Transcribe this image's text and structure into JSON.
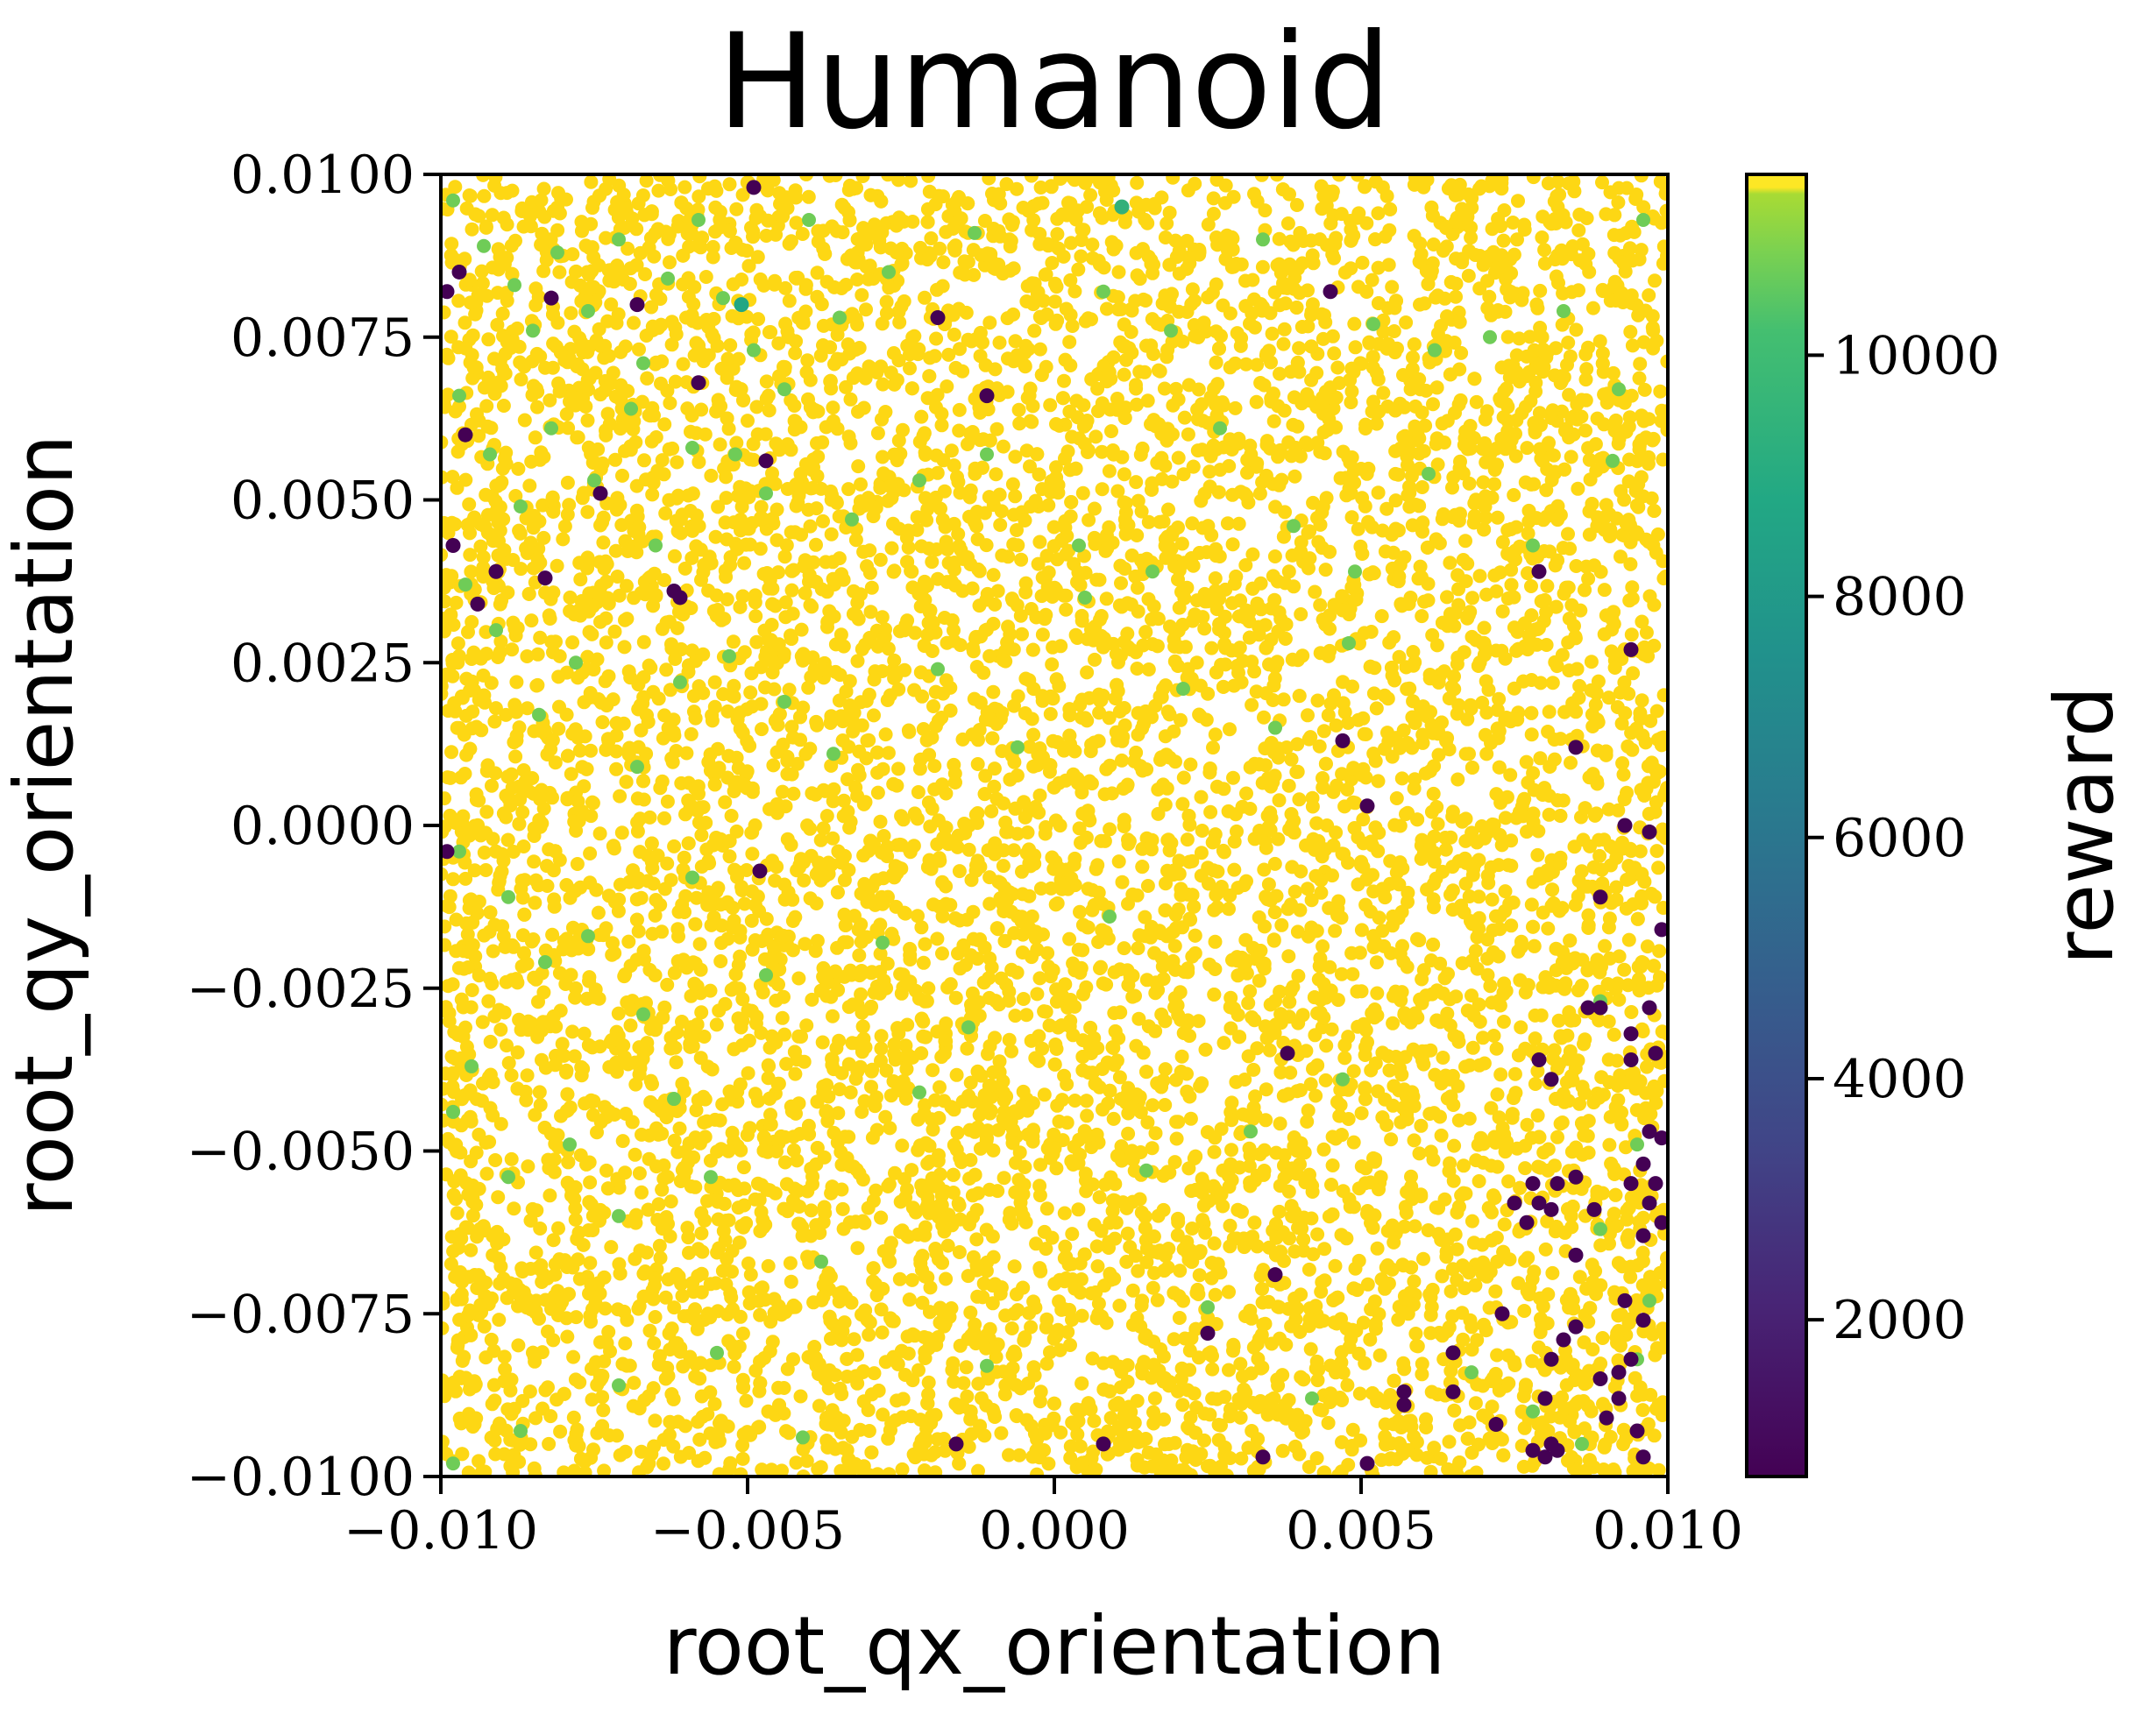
{
  "chart_data": {
    "type": "scatter",
    "title": "Humanoid",
    "xlabel": "root_qx_orientation",
    "ylabel": "root_qy_orientation",
    "xlim": [
      -0.01,
      0.01
    ],
    "ylim": [
      -0.01,
      0.01
    ],
    "xticks": [
      -0.01,
      -0.005,
      0.0,
      0.005,
      0.01
    ],
    "xtick_labels": [
      "−0.010",
      "−0.005",
      "0.000",
      "0.005",
      "0.010"
    ],
    "yticks": [
      0.01,
      0.0075,
      0.005,
      0.0025,
      0.0,
      -0.0025,
      -0.005,
      -0.0075,
      -0.01
    ],
    "ytick_labels": [
      "0.0100",
      "0.0075",
      "0.0050",
      "0.0025",
      "0.0000",
      "−0.0025",
      "−0.0050",
      "−0.0075",
      "−0.0100"
    ],
    "grid": false,
    "colorbar": {
      "label": "reward",
      "colormap": "viridis",
      "range": [
        700,
        11500
      ],
      "ticks": [
        2000,
        4000,
        6000,
        8000,
        10000
      ],
      "tick_labels": [
        "2000",
        "4000",
        "6000",
        "8000",
        "10000"
      ]
    },
    "background_cloud": {
      "description_of_data": "dense uniform cloud of points covering the full square, nearly all at maximum reward",
      "reward": 11500,
      "approx_count": 9000
    },
    "green_points": [
      [
        -0.0098,
        0.0096,
        10600
      ],
      [
        -0.0093,
        0.0089,
        10600
      ],
      [
        -0.0088,
        0.0083,
        10600
      ],
      [
        -0.0085,
        0.0076,
        10600
      ],
      [
        -0.0081,
        0.0088,
        10600
      ],
      [
        -0.0076,
        0.0079,
        10600
      ],
      [
        -0.0071,
        0.009,
        10600
      ],
      [
        -0.0067,
        0.0071,
        10600
      ],
      [
        -0.0063,
        0.0084,
        10600
      ],
      [
        -0.0058,
        0.0093,
        10600
      ],
      [
        -0.0054,
        0.0081,
        10600
      ],
      [
        -0.0049,
        0.0073,
        10600
      ],
      [
        -0.0044,
        0.0067,
        10600
      ],
      [
        -0.004,
        0.0093,
        10600
      ],
      [
        -0.0035,
        0.0078,
        10600
      ],
      [
        -0.0027,
        0.0085,
        10600
      ],
      [
        -0.0013,
        0.0091,
        10600
      ],
      [
        0.0008,
        0.0082,
        10600
      ],
      [
        0.0019,
        0.0076,
        10600
      ],
      [
        0.0034,
        0.009,
        10600
      ],
      [
        0.0052,
        0.0077,
        10600
      ],
      [
        0.0062,
        0.0073,
        10600
      ],
      [
        0.0071,
        0.0075,
        10600
      ],
      [
        0.0083,
        0.0079,
        10600
      ],
      [
        0.0092,
        0.0067,
        10600
      ],
      [
        0.0096,
        0.0093,
        10600
      ],
      [
        -0.0097,
        0.0066,
        10600
      ],
      [
        -0.0092,
        0.0057,
        10600
      ],
      [
        -0.0087,
        0.0049,
        10600
      ],
      [
        -0.0082,
        0.0061,
        10600
      ],
      [
        -0.0075,
        0.0053,
        10600
      ],
      [
        -0.0069,
        0.0064,
        10600
      ],
      [
        -0.0065,
        0.0043,
        10600
      ],
      [
        -0.0059,
        0.0058,
        10600
      ],
      [
        -0.0052,
        0.0057,
        10600
      ],
      [
        -0.0047,
        0.0051,
        10600
      ],
      [
        -0.0033,
        0.0047,
        10600
      ],
      [
        -0.0022,
        0.0053,
        10600
      ],
      [
        -0.0011,
        0.0057,
        10600
      ],
      [
        0.0004,
        0.0043,
        10600
      ],
      [
        0.0016,
        0.0039,
        10600
      ],
      [
        0.0027,
        0.0061,
        10600
      ],
      [
        0.0039,
        0.0046,
        10600
      ],
      [
        0.0049,
        0.0039,
        10600
      ],
      [
        0.0061,
        0.0054,
        10600
      ],
      [
        0.0078,
        0.0043,
        10600
      ],
      [
        0.0091,
        0.0056,
        10600
      ],
      [
        -0.0096,
        0.0037,
        10600
      ],
      [
        -0.0091,
        0.003,
        10600
      ],
      [
        -0.0084,
        0.0017,
        10600
      ],
      [
        -0.0078,
        0.0025,
        10600
      ],
      [
        -0.0068,
        0.0009,
        10600
      ],
      [
        -0.0061,
        0.0022,
        10600
      ],
      [
        -0.0053,
        0.0026,
        10600
      ],
      [
        -0.0044,
        0.0019,
        10600
      ],
      [
        -0.0036,
        0.0011,
        10600
      ],
      [
        -0.0019,
        0.0024,
        10600
      ],
      [
        -0.0006,
        0.0012,
        10600
      ],
      [
        0.0005,
        0.0035,
        10600
      ],
      [
        0.0021,
        0.0021,
        10600
      ],
      [
        0.0036,
        0.0015,
        10600
      ],
      [
        0.0048,
        0.0028,
        10600
      ],
      [
        -0.0097,
        -0.0004,
        10600
      ],
      [
        -0.0089,
        -0.0011,
        10600
      ],
      [
        -0.0083,
        -0.0021,
        10600
      ],
      [
        -0.0076,
        -0.0017,
        10600
      ],
      [
        -0.0067,
        -0.0029,
        10600
      ],
      [
        -0.0059,
        -0.0008,
        10600
      ],
      [
        -0.0047,
        -0.0023,
        10600
      ],
      [
        -0.0028,
        -0.0018,
        10600
      ],
      [
        -0.0014,
        -0.0031,
        10600
      ],
      [
        0.0009,
        -0.0014,
        10600
      ],
      [
        -0.0098,
        -0.0044,
        10600
      ],
      [
        -0.0095,
        -0.0037,
        10600
      ],
      [
        -0.0089,
        -0.0054,
        10600
      ],
      [
        -0.0079,
        -0.0049,
        10600
      ],
      [
        -0.0071,
        -0.006,
        10600
      ],
      [
        -0.0062,
        -0.0042,
        10600
      ],
      [
        -0.0056,
        -0.0054,
        10600
      ],
      [
        -0.0038,
        -0.0067,
        10600
      ],
      [
        -0.0022,
        -0.0041,
        10600
      ],
      [
        0.0015,
        -0.0053,
        10600
      ],
      [
        0.0032,
        -0.0047,
        10600
      ],
      [
        0.0047,
        -0.0039,
        10600
      ],
      [
        0.0089,
        -0.0027,
        10600
      ],
      [
        0.0095,
        -0.0049,
        10600
      ],
      [
        0.0097,
        -0.0073,
        10600
      ],
      [
        0.0089,
        -0.0062,
        10600
      ],
      [
        -0.0098,
        -0.0098,
        10600
      ],
      [
        -0.0087,
        -0.0093,
        10600
      ],
      [
        -0.0071,
        -0.0086,
        10600
      ],
      [
        -0.0055,
        -0.0081,
        10600
      ],
      [
        -0.0011,
        -0.0083,
        10600
      ],
      [
        0.0025,
        -0.0074,
        10600
      ],
      [
        0.0068,
        -0.0084,
        10600
      ],
      [
        0.0078,
        -0.009,
        10600
      ],
      [
        0.0095,
        -0.0082,
        10600
      ],
      [
        0.0086,
        -0.0095,
        10600
      ],
      [
        0.0042,
        -0.0088,
        10600
      ],
      [
        -0.0041,
        -0.0094,
        10600
      ]
    ],
    "low_reward_points": [
      [
        -0.0099,
        0.0082,
        700
      ],
      [
        -0.0097,
        0.0085,
        700
      ],
      [
        -0.0082,
        0.0081,
        700
      ],
      [
        -0.0068,
        0.008,
        700
      ],
      [
        -0.0049,
        0.0098,
        700
      ],
      [
        -0.0051,
        0.008,
        8700
      ],
      [
        0.0011,
        0.0095,
        9200
      ],
      [
        -0.0019,
        0.0078,
        700
      ],
      [
        -0.0058,
        0.0068,
        700
      ],
      [
        -0.0011,
        0.0066,
        700
      ],
      [
        -0.0096,
        0.006,
        700
      ],
      [
        -0.0047,
        0.0056,
        700
      ],
      [
        -0.0074,
        0.0051,
        700
      ],
      [
        -0.0098,
        0.0043,
        700
      ],
      [
        -0.0091,
        0.0039,
        700
      ],
      [
        -0.0083,
        0.0038,
        700
      ],
      [
        -0.0062,
        0.0036,
        700
      ],
      [
        -0.0061,
        0.0035,
        700
      ],
      [
        -0.0094,
        0.0034,
        700
      ],
      [
        0.0045,
        0.0082,
        700
      ],
      [
        0.0079,
        0.0039,
        700
      ],
      [
        0.0094,
        0.0027,
        700
      ],
      [
        0.0047,
        0.0013,
        700
      ],
      [
        0.0085,
        0.0012,
        700
      ],
      [
        0.0051,
        0.0003,
        700
      ],
      [
        0.0093,
        0.0,
        700
      ],
      [
        0.0097,
        -0.0001,
        700
      ],
      [
        0.0089,
        -0.0011,
        700
      ],
      [
        -0.0099,
        -0.0004,
        700
      ],
      [
        -0.0048,
        -0.0007,
        700
      ],
      [
        0.0099,
        -0.0016,
        700
      ],
      [
        0.0089,
        -0.0028,
        700
      ],
      [
        0.0094,
        -0.0032,
        700
      ],
      [
        0.0097,
        -0.0028,
        700
      ],
      [
        0.0087,
        -0.0028,
        700
      ],
      [
        0.0038,
        -0.0035,
        700
      ],
      [
        0.0079,
        -0.0036,
        700
      ],
      [
        0.0094,
        -0.0036,
        700
      ],
      [
        0.0098,
        -0.0035,
        700
      ],
      [
        0.0081,
        -0.0039,
        700
      ],
      [
        0.0097,
        -0.0047,
        700
      ],
      [
        0.0099,
        -0.0048,
        700
      ],
      [
        0.0096,
        -0.0052,
        700
      ],
      [
        0.0094,
        -0.0055,
        700
      ],
      [
        0.0078,
        -0.0055,
        700
      ],
      [
        0.0075,
        -0.0058,
        700
      ],
      [
        0.0082,
        -0.0055,
        700
      ],
      [
        0.0085,
        -0.0054,
        700
      ],
      [
        0.0079,
        -0.0058,
        700
      ],
      [
        0.0081,
        -0.0059,
        700
      ],
      [
        0.0077,
        -0.0061,
        700
      ],
      [
        0.0088,
        -0.0059,
        700
      ],
      [
        0.0097,
        -0.0058,
        700
      ],
      [
        0.0099,
        -0.0061,
        700
      ],
      [
        0.0096,
        -0.0063,
        700
      ],
      [
        0.0085,
        -0.0066,
        700
      ],
      [
        0.0036,
        -0.0069,
        700
      ],
      [
        0.0093,
        -0.0073,
        700
      ],
      [
        0.0073,
        -0.0075,
        700
      ],
      [
        0.0096,
        -0.0076,
        700
      ],
      [
        0.0025,
        -0.0078,
        700
      ],
      [
        0.0085,
        -0.0077,
        700
      ],
      [
        0.0083,
        -0.0079,
        700
      ],
      [
        0.0065,
        -0.0081,
        700
      ],
      [
        0.0081,
        -0.0082,
        700
      ],
      [
        0.0094,
        -0.0082,
        700
      ],
      [
        0.0092,
        -0.0084,
        700
      ],
      [
        0.0089,
        -0.0085,
        700
      ],
      [
        0.0065,
        -0.0087,
        700
      ],
      [
        0.0057,
        -0.0087,
        700
      ],
      [
        0.0057,
        -0.0089,
        700
      ],
      [
        0.008,
        -0.0088,
        700
      ],
      [
        0.0092,
        -0.0088,
        700
      ],
      [
        0.009,
        -0.0091,
        700
      ],
      [
        0.0072,
        -0.0092,
        700
      ],
      [
        0.0095,
        -0.0093,
        700
      ],
      [
        -0.0016,
        -0.0095,
        700
      ],
      [
        0.0008,
        -0.0095,
        700
      ],
      [
        0.0078,
        -0.0096,
        700
      ],
      [
        0.008,
        -0.0097,
        700
      ],
      [
        0.0082,
        -0.0096,
        700
      ],
      [
        0.0081,
        -0.0095,
        700
      ],
      [
        0.0096,
        -0.0097,
        700
      ],
      [
        0.0034,
        -0.0097,
        700
      ],
      [
        0.0051,
        -0.0098,
        700
      ],
      [
        0.0098,
        -0.0055,
        700
      ]
    ]
  }
}
